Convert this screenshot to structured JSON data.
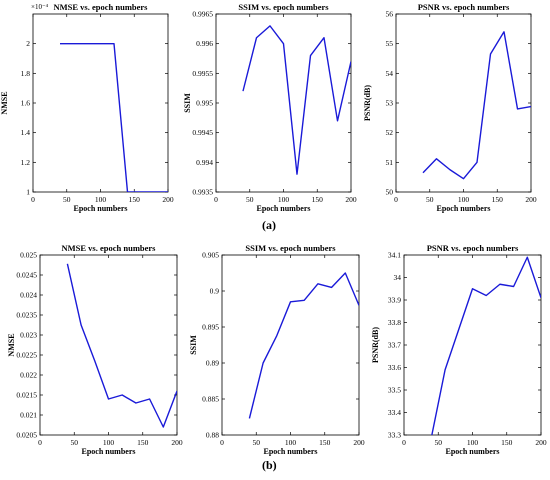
{
  "figure": {
    "captions": [
      "(a)",
      "(b)"
    ]
  },
  "chart_data": [
    {
      "type": "line",
      "title": "NMSE vs. epoch numbers",
      "exponent_label": "×10⁻⁴",
      "xlabel": "Epoch numbers",
      "ylabel": "NMSE",
      "xlim": [
        0,
        200
      ],
      "ylim": [
        1,
        2.2
      ],
      "xticks": [
        0,
        50,
        100,
        150,
        200
      ],
      "yticks": [
        1,
        1.2,
        1.4,
        1.6,
        1.8,
        2
      ],
      "ytick_labels": [
        "1",
        "1.2",
        "1.4",
        "1.6",
        "1.8",
        "2"
      ],
      "x": [
        40,
        60,
        80,
        100,
        120,
        140,
        160,
        180,
        200
      ],
      "y": [
        2,
        2,
        2,
        2,
        2,
        1,
        1,
        1,
        1
      ],
      "color": "#1a1ad8"
    },
    {
      "type": "line",
      "title": "SSIM vs. epoch numbers",
      "xlabel": "Epoch numbers",
      "ylabel": "SSIM",
      "xlim": [
        0,
        200
      ],
      "ylim": [
        0.9935,
        0.9965
      ],
      "xticks": [
        0,
        50,
        100,
        150,
        200
      ],
      "yticks": [
        0.9935,
        0.994,
        0.9945,
        0.995,
        0.9955,
        0.996,
        0.9965
      ],
      "ytick_labels": [
        "0.9935",
        "0.994",
        "0.9945",
        "0.995",
        "0.9955",
        "0.996",
        "0.9965"
      ],
      "x": [
        40,
        60,
        80,
        100,
        120,
        140,
        160,
        180,
        200
      ],
      "y": [
        0.9952,
        0.9961,
        0.9963,
        0.996,
        0.9938,
        0.9958,
        0.9961,
        0.9947,
        0.9957
      ],
      "color": "#1a1ad8"
    },
    {
      "type": "line",
      "title": "PSNR vs. epoch numbers",
      "xlabel": "Epoch numbers",
      "ylabel": "PSNR(dB)",
      "xlim": [
        0,
        200
      ],
      "ylim": [
        50,
        56
      ],
      "xticks": [
        0,
        50,
        100,
        150,
        200
      ],
      "yticks": [
        50,
        51,
        52,
        53,
        54,
        55,
        56
      ],
      "ytick_labels": [
        "50",
        "51",
        "52",
        "53",
        "54",
        "55",
        "56"
      ],
      "x": [
        40,
        60,
        80,
        100,
        120,
        140,
        160,
        180,
        200
      ],
      "y": [
        50.65,
        51.12,
        50.75,
        50.45,
        51.0,
        54.65,
        55.4,
        52.8,
        52.88
      ],
      "color": "#1a1ad8"
    },
    {
      "type": "line",
      "title": "NMSE vs. epoch numbers",
      "xlabel": "Epoch numbers",
      "ylabel": "NMSE",
      "xlim": [
        0,
        200
      ],
      "ylim": [
        0.0205,
        0.025
      ],
      "xticks": [
        0,
        50,
        100,
        150,
        200
      ],
      "yticks": [
        0.0205,
        0.021,
        0.0215,
        0.022,
        0.0225,
        0.023,
        0.0235,
        0.024,
        0.0245,
        0.025
      ],
      "ytick_labels": [
        "0.0205",
        "0.021",
        "0.0215",
        "0.022",
        "0.0225",
        "0.023",
        "0.0235",
        "0.024",
        "0.0245",
        "0.025"
      ],
      "x": [
        40,
        60,
        80,
        100,
        120,
        140,
        160,
        180,
        200
      ],
      "y": [
        0.02478,
        0.02325,
        0.02235,
        0.0214,
        0.0215,
        0.0213,
        0.0214,
        0.0207,
        0.0216
      ],
      "color": "#1a1ad8"
    },
    {
      "type": "line",
      "title": "SSIM vs. epoch numbers",
      "xlabel": "Epoch numbers",
      "ylabel": "SSIM",
      "xlim": [
        0,
        200
      ],
      "ylim": [
        0.88,
        0.905
      ],
      "xticks": [
        0,
        50,
        100,
        150,
        200
      ],
      "yticks": [
        0.88,
        0.885,
        0.89,
        0.895,
        0.9,
        0.905
      ],
      "ytick_labels": [
        "0.88",
        "0.885",
        "0.89",
        "0.895",
        "0.9",
        "0.905"
      ],
      "x": [
        40,
        60,
        80,
        100,
        120,
        140,
        160,
        180,
        200
      ],
      "y": [
        0.8823,
        0.89,
        0.8938,
        0.8985,
        0.8987,
        0.901,
        0.9005,
        0.9025,
        0.898
      ],
      "color": "#1a1ad8"
    },
    {
      "type": "line",
      "title": "PSNR vs. epoch numbers",
      "xlabel": "Epoch numbers",
      "ylabel": "PSNR(dB)",
      "xlim": [
        0,
        200
      ],
      "ylim": [
        33.3,
        34.1
      ],
      "xticks": [
        0,
        50,
        100,
        150,
        200
      ],
      "yticks": [
        33.3,
        33.4,
        33.5,
        33.6,
        33.7,
        33.8,
        33.9,
        34,
        34.1
      ],
      "ytick_labels": [
        "33.3",
        "33.4",
        "33.5",
        "33.6",
        "33.7",
        "33.8",
        "33.9",
        "34",
        "34.1"
      ],
      "x": [
        40,
        60,
        80,
        100,
        120,
        140,
        160,
        180,
        200
      ],
      "y": [
        33.29,
        33.59,
        33.77,
        33.95,
        33.92,
        33.97,
        33.96,
        34.09,
        33.91
      ],
      "color": "#1a1ad8"
    }
  ]
}
